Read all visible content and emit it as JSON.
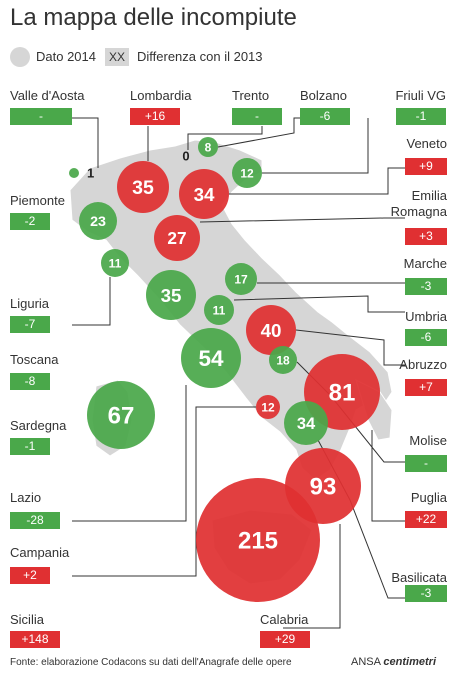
{
  "title": "La mappa delle incompiute",
  "legend": {
    "dot_label": "Dato 2014",
    "box_sample": "XX",
    "box_label": "Differenza con il 2013"
  },
  "regions": [
    {
      "id": "valle-daosta",
      "name": "Valle d'Aosta",
      "value": "1",
      "diff": "-",
      "bubble_color": "green",
      "diff_color": "green"
    },
    {
      "id": "lombardia",
      "name": "Lombardia",
      "value": "35",
      "diff": "+16",
      "bubble_color": "red",
      "diff_color": "red"
    },
    {
      "id": "trento",
      "name": "Trento",
      "value": "0",
      "diff": "-",
      "bubble_color": "none",
      "diff_color": "green"
    },
    {
      "id": "bolzano",
      "name": "Bolzano",
      "value": "8",
      "diff": "-6",
      "bubble_color": "green",
      "diff_color": "green"
    },
    {
      "id": "friuli",
      "name": "Friuli VG",
      "value": "12",
      "diff": "-1",
      "bubble_color": "green",
      "diff_color": "green"
    },
    {
      "id": "veneto",
      "name": "Veneto",
      "value": "34",
      "diff": "+9",
      "bubble_color": "red",
      "diff_color": "red"
    },
    {
      "id": "piemonte",
      "name": "Piemonte",
      "value": "23",
      "diff": "-2",
      "bubble_color": "green",
      "diff_color": "green"
    },
    {
      "id": "emilia",
      "name": "Emilia\nRomagna",
      "value": "27",
      "diff": "+3",
      "bubble_color": "red",
      "diff_color": "red"
    },
    {
      "id": "liguria",
      "name": "Liguria",
      "value": "11",
      "diff": "-7",
      "bubble_color": "green",
      "diff_color": "green"
    },
    {
      "id": "marche",
      "name": "Marche",
      "value": "17",
      "diff": "-3",
      "bubble_color": "green",
      "diff_color": "green"
    },
    {
      "id": "toscana",
      "name": "Toscana",
      "value": "35",
      "diff": "-8",
      "bubble_color": "green",
      "diff_color": "green"
    },
    {
      "id": "umbria",
      "name": "Umbria",
      "value": "11",
      "diff": "-6",
      "bubble_color": "green",
      "diff_color": "green"
    },
    {
      "id": "abruzzo",
      "name": "Abruzzo",
      "value": "40",
      "diff": "+7",
      "bubble_color": "red",
      "diff_color": "red"
    },
    {
      "id": "sardegna",
      "name": "Sardegna",
      "value": "67",
      "diff": "-1",
      "bubble_color": "green",
      "diff_color": "green"
    },
    {
      "id": "molise",
      "name": "Molise",
      "value": "18",
      "diff": "-",
      "bubble_color": "green",
      "diff_color": "green"
    },
    {
      "id": "lazio",
      "name": "Lazio",
      "value": "54",
      "diff": "-28",
      "bubble_color": "green",
      "diff_color": "green"
    },
    {
      "id": "puglia",
      "name": "Puglia",
      "value": "81",
      "diff": "+22",
      "bubble_color": "red",
      "diff_color": "red"
    },
    {
      "id": "campania",
      "name": "Campania",
      "value": "12",
      "diff": "+2",
      "bubble_color": "red",
      "diff_color": "red"
    },
    {
      "id": "basilicata",
      "name": "Basilicata",
      "value": "34",
      "diff": "-3",
      "bubble_color": "green",
      "diff_color": "green"
    },
    {
      "id": "sicilia",
      "name": "Sicilia",
      "value": "215",
      "diff": "+148",
      "bubble_color": "red",
      "diff_color": "red"
    },
    {
      "id": "calabria",
      "name": "Calabria",
      "value": "93",
      "diff": "+29",
      "bubble_color": "red",
      "diff_color": "red"
    }
  ],
  "footer": "Fonte: elaborazione Codacons su dati dell'Anagrafe delle opere",
  "brand": {
    "prefix": "ANSA",
    "name": "centimetri"
  },
  "colors": {
    "green": "#4aa84a",
    "red": "#e03032",
    "map": "#d6d6d6",
    "leader": "#333333"
  }
}
